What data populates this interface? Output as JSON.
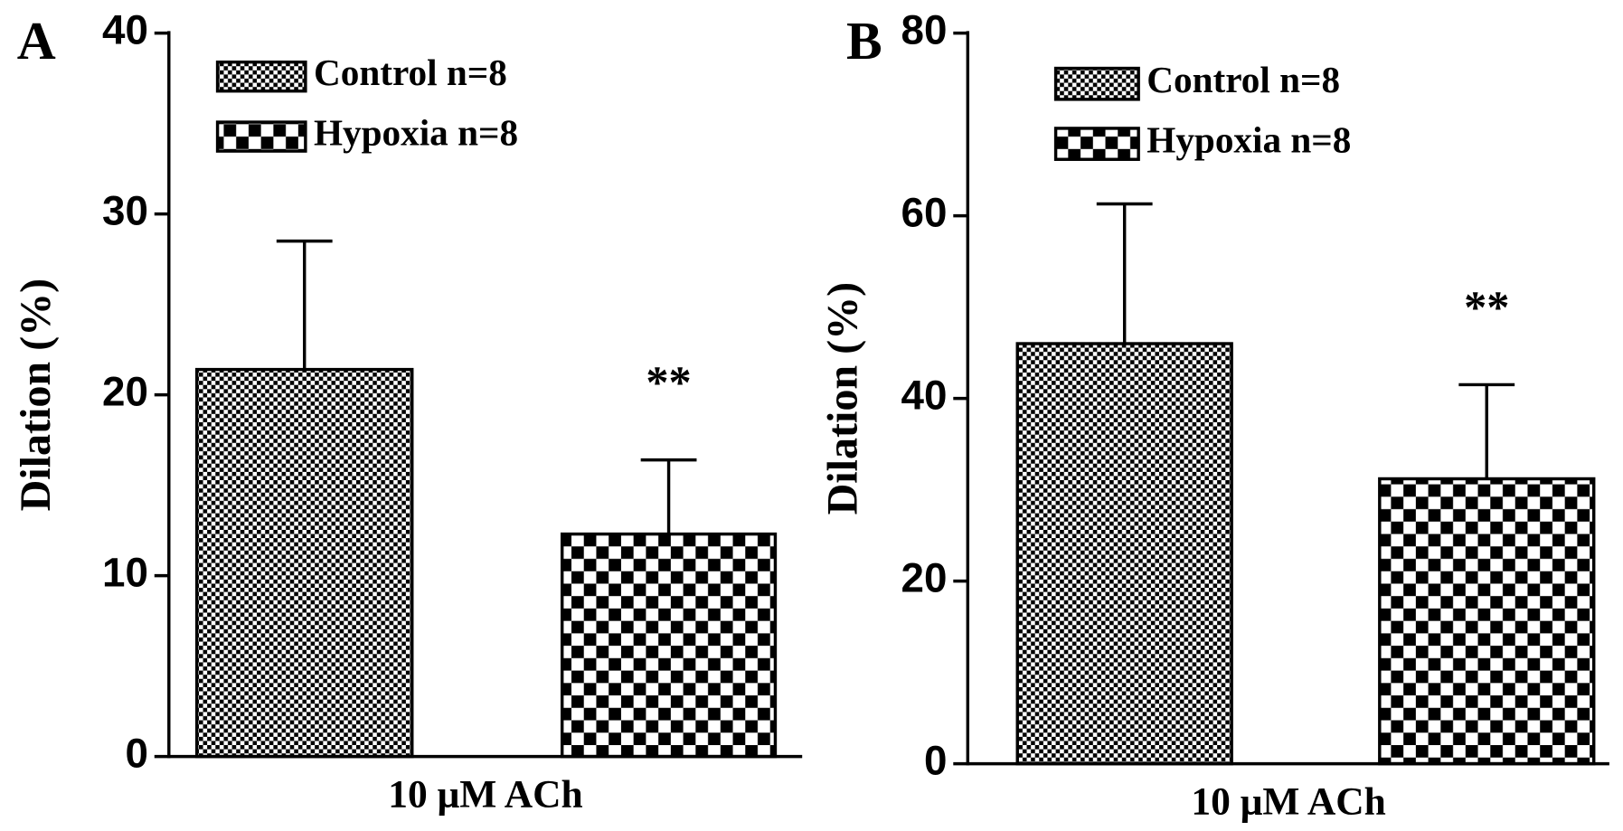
{
  "chart_data": [
    {
      "type": "bar",
      "panel_label": "A",
      "y_label": "Dilation (%)",
      "x_label": "10 μM ACh",
      "ylim": [
        0,
        40
      ],
      "yticks": [
        0,
        10,
        20,
        30,
        40
      ],
      "series": [
        {
          "name": "Control n=8",
          "pattern": "fine",
          "values": [
            21.4
          ],
          "errors": [
            7.1
          ]
        },
        {
          "name": "Hypoxia n=8",
          "pattern": "coarse",
          "values": [
            12.3
          ],
          "errors": [
            4.1
          ],
          "annotation": "**"
        }
      ]
    },
    {
      "type": "bar",
      "panel_label": "B",
      "y_label": "Dilation (%)",
      "x_label": "10 μM ACh",
      "ylim": [
        0,
        80
      ],
      "yticks": [
        0,
        20,
        40,
        60,
        80
      ],
      "series": [
        {
          "name": "Control n=8",
          "pattern": "fine",
          "values": [
            46
          ],
          "errors": [
            15.3
          ]
        },
        {
          "name": "Hypoxia n=8",
          "pattern": "coarse",
          "values": [
            31.2
          ],
          "errors": [
            10.3
          ],
          "annotation": "**"
        }
      ]
    }
  ]
}
